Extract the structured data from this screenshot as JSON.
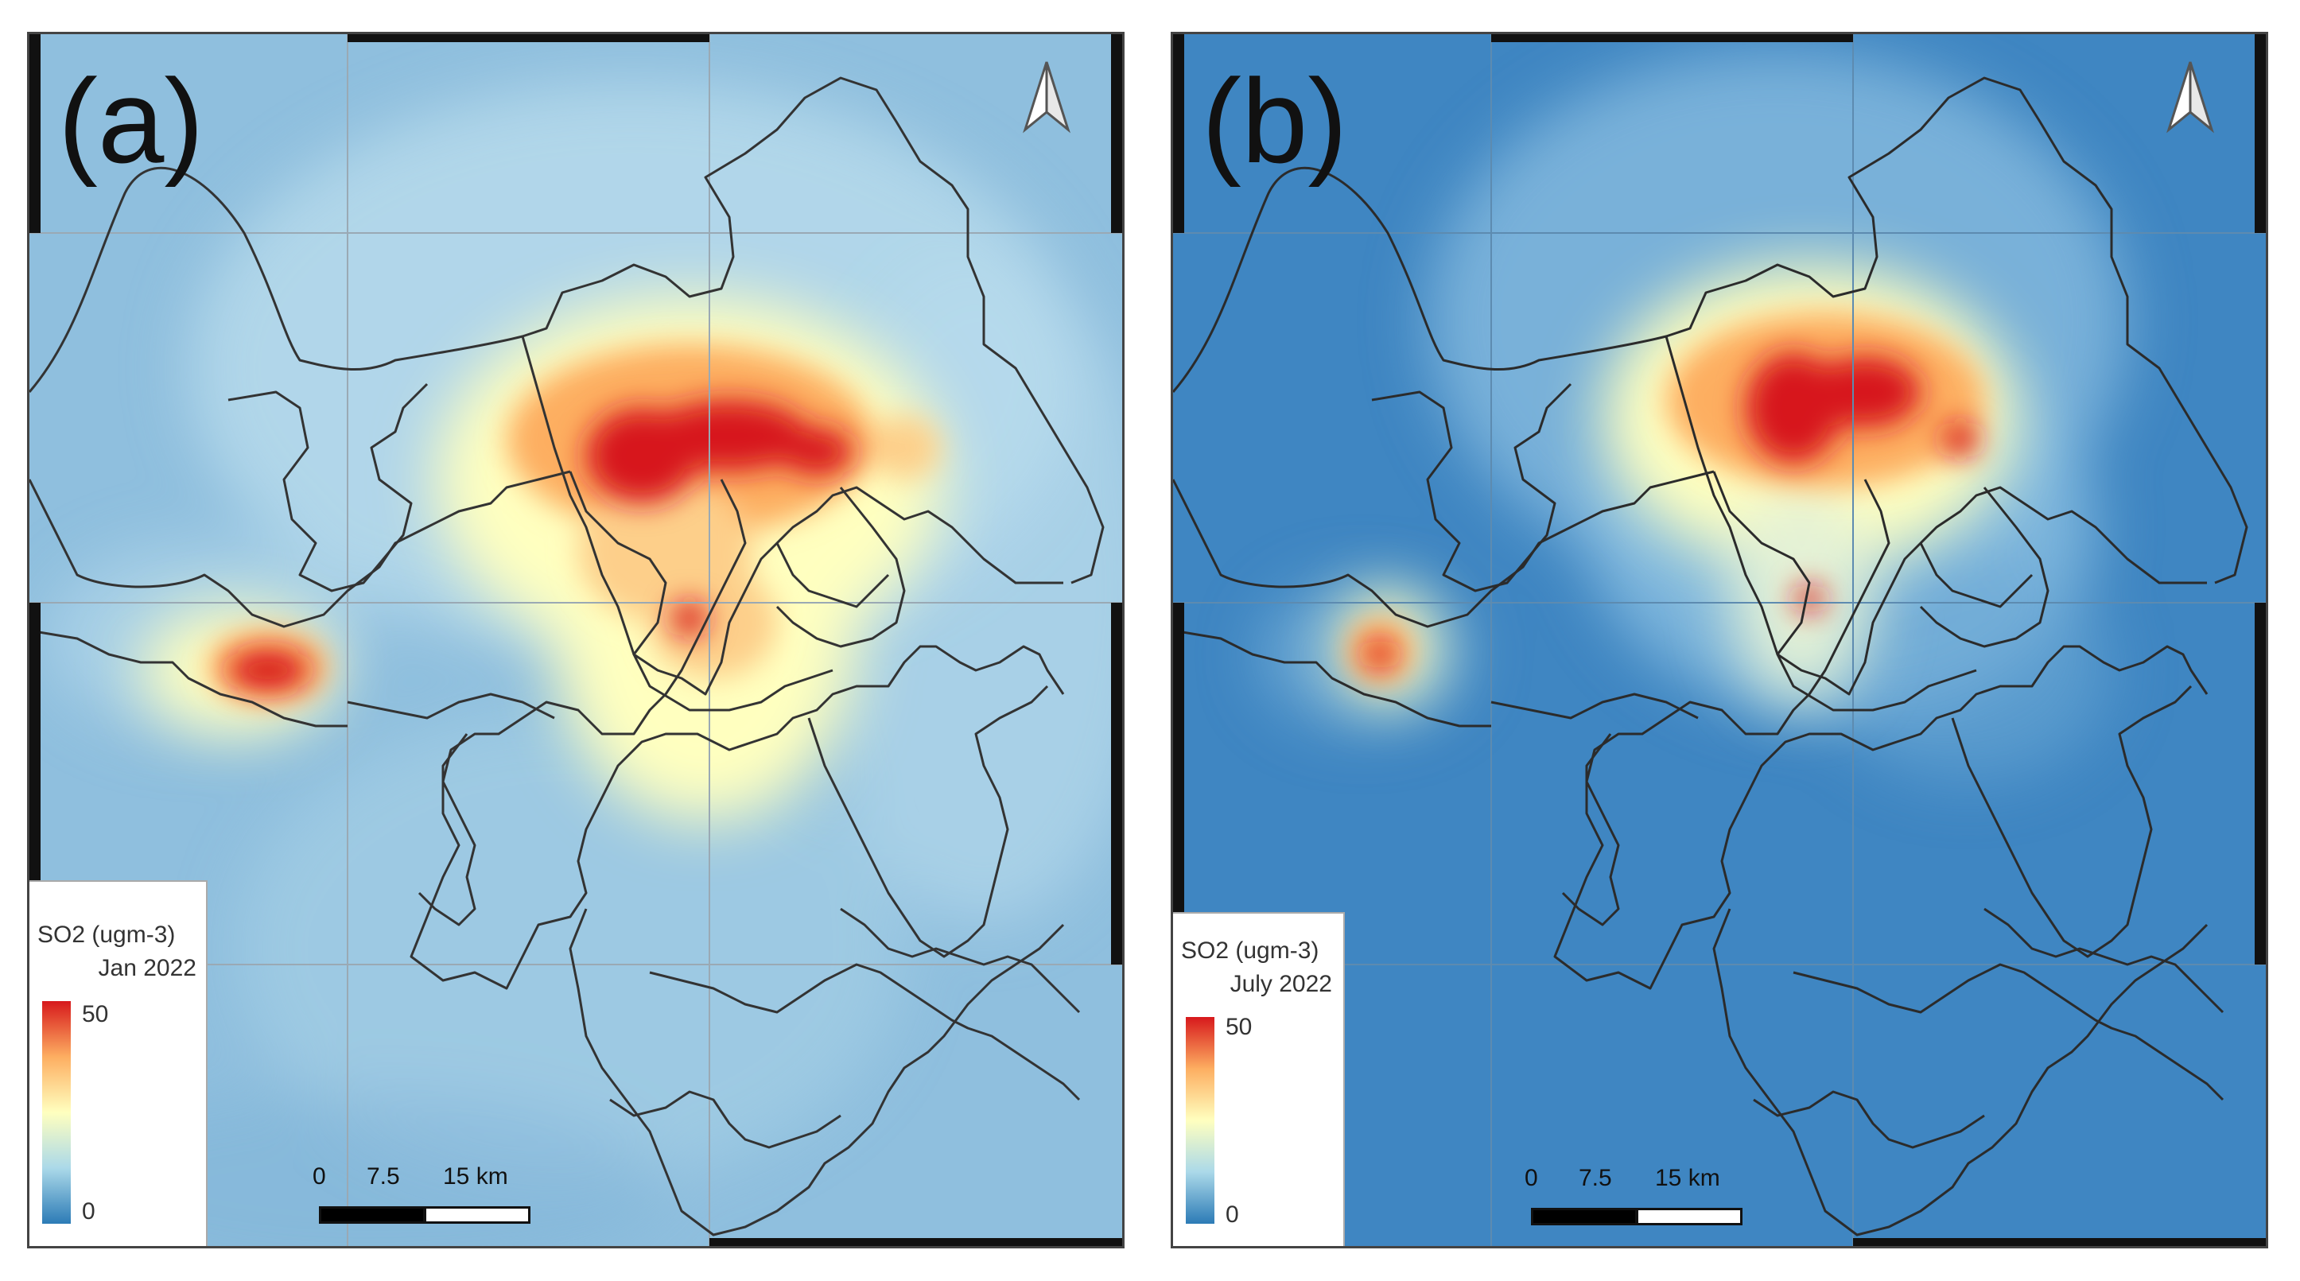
{
  "panels": [
    {
      "id": "a",
      "letter": "(a)",
      "legend": {
        "title": "SO2 (ugm-3)",
        "date": "Jan 2022",
        "max_label": "50",
        "min_label": "0"
      },
      "scale": {
        "t0": "0",
        "t1": "7.5",
        "t2": "15 km"
      },
      "colors": {
        "background": "#8fbfde"
      }
    },
    {
      "id": "b",
      "letter": "(b)",
      "legend": {
        "title": "SO2 (ugm-3)",
        "date": "July 2022",
        "max_label": "50",
        "min_label": "0"
      },
      "scale": {
        "t0": "0",
        "t1": "7.5",
        "t2": "15 km"
      },
      "colors": {
        "background": "#3f86c2"
      }
    }
  ],
  "colors": {
    "ramp_high": "#d7191c",
    "ramp_mid_high": "#fdae61",
    "ramp_mid": "#ffffbf",
    "ramp_mid_low": "#abd9e9",
    "ramp_low": "#2c7bb6",
    "boundary": "#333333"
  },
  "icons": [
    "north-arrow-icon"
  ]
}
